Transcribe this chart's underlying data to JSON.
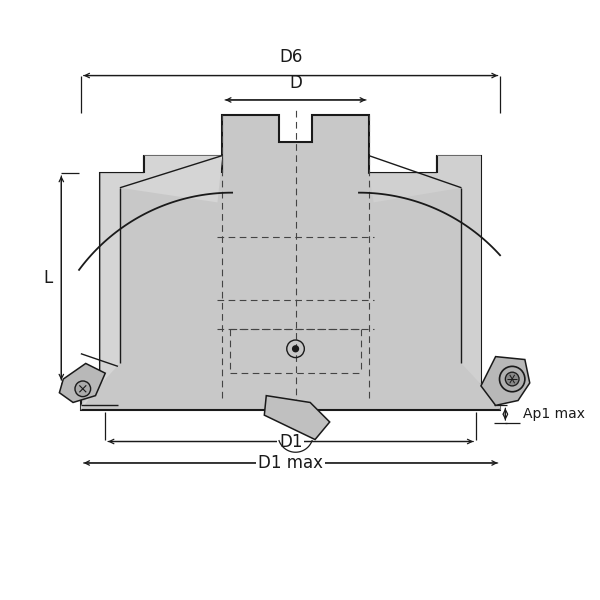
{
  "bg_color": "#ffffff",
  "line_color": "#1a1a1a",
  "gray_fill": "#c8c8c8",
  "gray_fill2": "#b8b8b8",
  "gray_dark": "#909090",
  "dashed_color": "#444444",
  "labels": {
    "D6": "D6",
    "D": "D",
    "D1": "D1",
    "D1max": "D1 max",
    "L": "L",
    "Ap1max": "Ap1 max"
  },
  "figsize": [
    6.0,
    6.0
  ],
  "dpi": 100
}
